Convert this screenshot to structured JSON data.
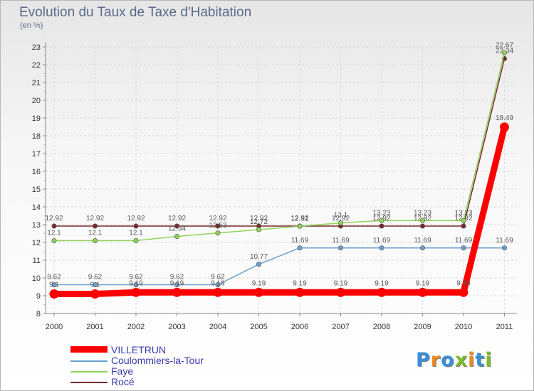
{
  "title": "Evolution du Taux de Taxe d'Habitation",
  "subtitle": "(en %)",
  "logo": {
    "text": "Proxiti",
    "colors": [
      "#3a8fd8",
      "#e98a1f",
      "#3a8fd8",
      "#7dbb2b",
      "#e98a1f",
      "#3a8fd8",
      "#7dbb2b"
    ]
  },
  "chart_data": {
    "type": "line",
    "title": "Evolution du Taux de Taxe d'Habitation",
    "ylabel": "(en %)",
    "x": [
      "2000",
      "2001",
      "2002",
      "2003",
      "2004",
      "2005",
      "2006",
      "2007",
      "2008",
      "2009",
      "2010",
      "2011"
    ],
    "ylim": [
      8,
      23
    ],
    "yticks": [
      8,
      9,
      10,
      11,
      12,
      13,
      14,
      15,
      16,
      17,
      18,
      19,
      20,
      21,
      22,
      23
    ],
    "series": [
      {
        "name": "Rocé",
        "color": "#7a2a2a",
        "values": [
          12.92,
          12.92,
          12.92,
          12.92,
          12.92,
          12.92,
          12.92,
          12.92,
          12.92,
          12.92,
          12.92,
          22.34
        ],
        "labels": [
          "12.92",
          "12.92",
          "12.92",
          "12.92",
          "12.92",
          "12.92",
          "12.92",
          "12.92",
          "12.92",
          "12.92",
          "12.92",
          "22.34"
        ]
      },
      {
        "name": "Faye",
        "color": "#8fd45a",
        "values": [
          12.1,
          12.1,
          12.1,
          12.34,
          12.53,
          12.72,
          12.91,
          13.1,
          13.23,
          13.23,
          13.23,
          22.67
        ],
        "labels": [
          "12.1",
          "12.1",
          "12.1",
          "12.34",
          "12.53",
          "12.72",
          "12.91",
          "13.1",
          "13.23",
          "13.23",
          "13.23",
          "22.67"
        ]
      },
      {
        "name": "Coulommiers-la-Tour",
        "color": "#6aa0d0",
        "values": [
          9.62,
          9.62,
          9.62,
          9.62,
          9.62,
          10.77,
          11.69,
          11.69,
          11.69,
          11.69,
          11.69,
          11.69
        ],
        "labels": [
          "9.62",
          "9.62",
          "9.62",
          "9.62",
          "9.62",
          "10.77",
          "11.69",
          "11.69",
          "11.69",
          "11.69",
          "11.69",
          "11.69"
        ]
      },
      {
        "name": "VILLETRUN",
        "color": "#ff0000",
        "values": [
          9.1,
          9.1,
          9.19,
          9.19,
          9.19,
          9.19,
          9.19,
          9.19,
          9.19,
          9.19,
          9.19,
          18.49
        ],
        "labels": [
          "9.1",
          "9.1",
          "9.19",
          "9.19",
          "9.19",
          "9.19",
          "9.19",
          "9.19",
          "9.19",
          "9.19",
          "9.19",
          "18.49"
        ]
      }
    ],
    "legend": [
      {
        "name": "VILLETRUN",
        "color": "#ff0000"
      },
      {
        "name": "Coulommiers-la-Tour",
        "color": "#6aa0d0"
      },
      {
        "name": "Faye",
        "color": "#8fd45a"
      },
      {
        "name": "Rocé",
        "color": "#7a2a2a"
      }
    ],
    "legend_position": "bottom-left"
  }
}
